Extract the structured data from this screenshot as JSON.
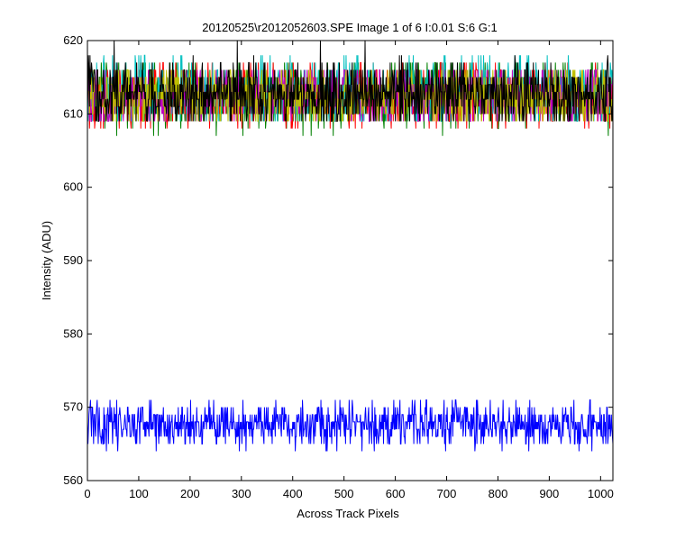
{
  "chart_data": {
    "type": "line",
    "title": "20120525\\r2012052603.SPE  Image 1 of 6  I:0.01  S:6  G:1",
    "xlabel": "Across Track Pixels",
    "ylabel": "Intensity (ADU)",
    "xlim": [
      0,
      1024
    ],
    "ylim": [
      560,
      620
    ],
    "x_ticks": [
      0,
      100,
      200,
      300,
      400,
      500,
      600,
      700,
      800,
      900,
      1000
    ],
    "y_ticks": [
      560,
      570,
      580,
      590,
      600,
      610,
      620
    ],
    "grid": false,
    "legend": false,
    "series": [
      {
        "color": "#008000",
        "mean": 612.6,
        "amplitude": 2.3,
        "values_range": [
          607,
          617
        ]
      },
      {
        "color": "#ff0000",
        "mean": 612.5,
        "amplitude": 2.3,
        "values_range": [
          608,
          617
        ]
      },
      {
        "color": "#00bfbf",
        "mean": 612.9,
        "amplitude": 2.4,
        "values_range": [
          609,
          618
        ]
      },
      {
        "color": "#bf00bf",
        "mean": 612.3,
        "amplitude": 2.2,
        "values_range": [
          609,
          616
        ]
      },
      {
        "color": "#bfbf00",
        "mean": 612.4,
        "amplitude": 2.2,
        "values_range": [
          609,
          616
        ]
      },
      {
        "color": "#000000",
        "mean": 612.7,
        "amplitude": 2.3,
        "values_range": [
          609,
          620
        ]
      },
      {
        "color": "#0000ff",
        "mean": 567.6,
        "amplitude": 1.6,
        "values_range": [
          564,
          571
        ]
      }
    ]
  }
}
